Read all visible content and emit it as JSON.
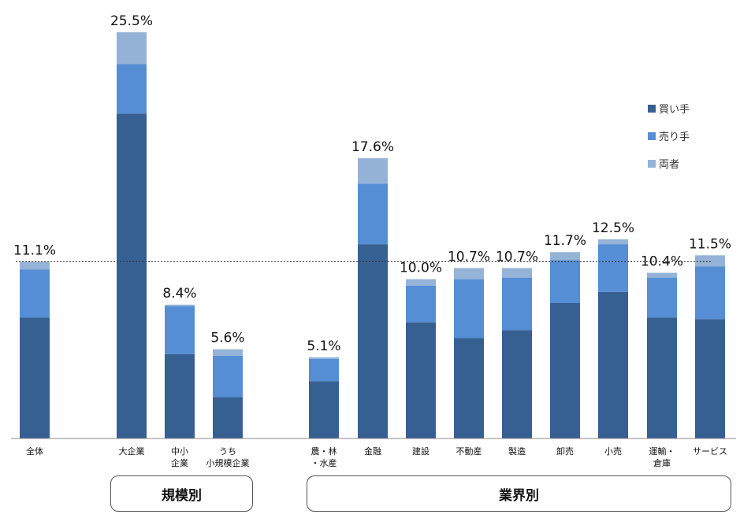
{
  "chart_data": {
    "type": "bar",
    "stacked": true,
    "categories": [
      "全体",
      "大企業",
      "中小\n企業",
      "うち\n小規模企業",
      "農・林\n・水産",
      "金融",
      "建設",
      "不動産",
      "製造",
      "卸売",
      "小売",
      "運輸・\n倉庫",
      "サービス"
    ],
    "totals_labels": [
      "11.1%",
      "25.5%",
      "8.4%",
      "5.6%",
      "5.1%",
      "17.6%",
      "10.0%",
      "10.7%",
      "10.7%",
      "11.7%",
      "12.5%",
      "10.4%",
      "11.5%"
    ],
    "series": [
      {
        "name": "買い手",
        "color": "#376092",
        "values": [
          7.6,
          20.4,
          5.3,
          2.6,
          3.6,
          12.2,
          7.3,
          6.3,
          6.8,
          8.5,
          9.2,
          7.6,
          7.5
        ]
      },
      {
        "name": "売り手",
        "color": "#558ED5",
        "values": [
          3.0,
          3.1,
          3.0,
          2.6,
          1.4,
          3.8,
          2.3,
          3.7,
          3.3,
          2.7,
          3.0,
          2.5,
          3.3
        ]
      },
      {
        "name": "両者",
        "color": "#95B3D7",
        "values": [
          0.5,
          2.0,
          0.1,
          0.4,
          0.1,
          1.6,
          0.4,
          0.7,
          0.6,
          0.5,
          0.3,
          0.3,
          0.7
        ]
      }
    ],
    "reference_line": 11.1,
    "ylim": [
      0,
      25.5
    ],
    "legend_position": "top-right",
    "grid": false
  },
  "groups": [
    {
      "label": "規模別"
    },
    {
      "label": "業界別"
    }
  ]
}
